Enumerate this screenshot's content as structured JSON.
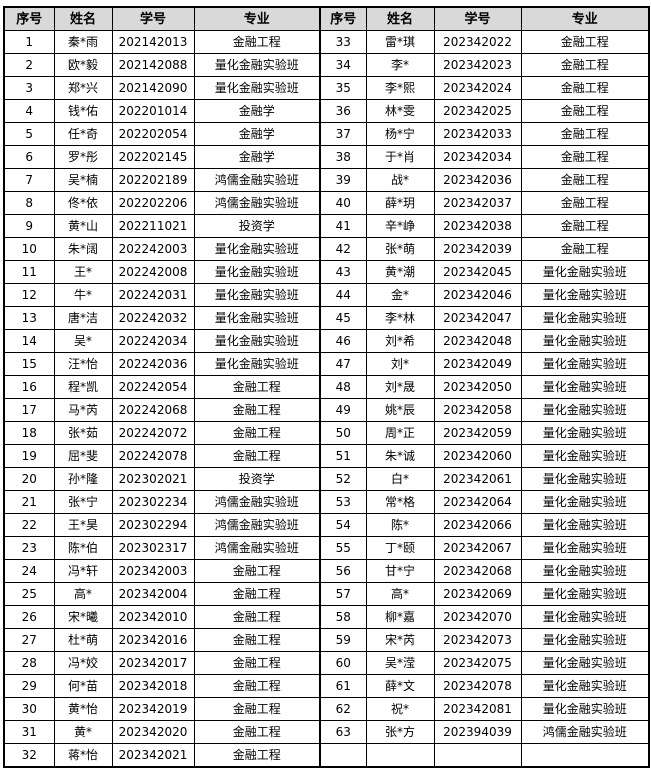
{
  "colors": {
    "header_bg": "#d9d9d9",
    "border": "#000000",
    "text": "#000000"
  },
  "table": {
    "headers": [
      "序号",
      "姓名",
      "学号",
      "专业",
      "序号",
      "姓名",
      "学号",
      "专业"
    ],
    "left_rows": [
      [
        "1",
        "秦*雨",
        "202142013",
        "金融工程"
      ],
      [
        "2",
        "欧*毅",
        "202142088",
        "量化金融实验班"
      ],
      [
        "3",
        "郑*兴",
        "202142090",
        "量化金融实验班"
      ],
      [
        "4",
        "钱*佑",
        "202201014",
        "金融学"
      ],
      [
        "5",
        "任*奇",
        "202202054",
        "金融学"
      ],
      [
        "6",
        "罗*彤",
        "202202145",
        "金融学"
      ],
      [
        "7",
        "吴*楠",
        "202202189",
        "鸿儒金融实验班"
      ],
      [
        "8",
        "佟*依",
        "202202206",
        "鸿儒金融实验班"
      ],
      [
        "9",
        "黄*山",
        "202211021",
        "投资学"
      ],
      [
        "10",
        "朱*阔",
        "202242003",
        "量化金融实验班"
      ],
      [
        "11",
        "王*",
        "202242008",
        "量化金融实验班"
      ],
      [
        "12",
        "牛*",
        "202242031",
        "量化金融实验班"
      ],
      [
        "13",
        "唐*洁",
        "202242032",
        "量化金融实验班"
      ],
      [
        "14",
        "吴*",
        "202242034",
        "量化金融实验班"
      ],
      [
        "15",
        "汪*怡",
        "202242036",
        "量化金融实验班"
      ],
      [
        "16",
        "程*凯",
        "202242054",
        "金融工程"
      ],
      [
        "17",
        "马*芮",
        "202242068",
        "金融工程"
      ],
      [
        "18",
        "张*茹",
        "202242072",
        "金融工程"
      ],
      [
        "19",
        "屈*斐",
        "202242078",
        "金融工程"
      ],
      [
        "20",
        "孙*隆",
        "202302021",
        "投资学"
      ],
      [
        "21",
        "张*宁",
        "202302234",
        "鸿儒金融实验班"
      ],
      [
        "22",
        "王*昊",
        "202302294",
        "鸿儒金融实验班"
      ],
      [
        "23",
        "陈*伯",
        "202302317",
        "鸿儒金融实验班"
      ],
      [
        "24",
        "冯*轩",
        "202342003",
        "金融工程"
      ],
      [
        "25",
        "高*",
        "202342004",
        "金融工程"
      ],
      [
        "26",
        "宋*曦",
        "202342010",
        "金融工程"
      ],
      [
        "27",
        "杜*萌",
        "202342016",
        "金融工程"
      ],
      [
        "28",
        "冯*姣",
        "202342017",
        "金融工程"
      ],
      [
        "29",
        "何*苗",
        "202342018",
        "金融工程"
      ],
      [
        "30",
        "黄*怡",
        "202342019",
        "金融工程"
      ],
      [
        "31",
        "黄*",
        "202342020",
        "金融工程"
      ],
      [
        "32",
        "蒋*怡",
        "202342021",
        "金融工程"
      ]
    ],
    "right_rows": [
      [
        "33",
        "雷*琪",
        "202342022",
        "金融工程"
      ],
      [
        "34",
        "李*",
        "202342023",
        "金融工程"
      ],
      [
        "35",
        "李*熙",
        "202342024",
        "金融工程"
      ],
      [
        "36",
        "林*雯",
        "202342025",
        "金融工程"
      ],
      [
        "37",
        "杨*宁",
        "202342033",
        "金融工程"
      ],
      [
        "38",
        "于*肖",
        "202342034",
        "金融工程"
      ],
      [
        "39",
        "战*",
        "202342036",
        "金融工程"
      ],
      [
        "40",
        "薛*玥",
        "202342037",
        "金融工程"
      ],
      [
        "41",
        "辛*峥",
        "202342038",
        "金融工程"
      ],
      [
        "42",
        "张*萌",
        "202342039",
        "金融工程"
      ],
      [
        "43",
        "黄*潮",
        "202342045",
        "量化金融实验班"
      ],
      [
        "44",
        "金*",
        "202342046",
        "量化金融实验班"
      ],
      [
        "45",
        "李*林",
        "202342047",
        "量化金融实验班"
      ],
      [
        "46",
        "刘*希",
        "202342048",
        "量化金融实验班"
      ],
      [
        "47",
        "刘*",
        "202342049",
        "量化金融实验班"
      ],
      [
        "48",
        "刘*晟",
        "202342050",
        "量化金融实验班"
      ],
      [
        "49",
        "姚*辰",
        "202342058",
        "量化金融实验班"
      ],
      [
        "50",
        "周*正",
        "202342059",
        "量化金融实验班"
      ],
      [
        "51",
        "朱*诚",
        "202342060",
        "量化金融实验班"
      ],
      [
        "52",
        "白*",
        "202342061",
        "量化金融实验班"
      ],
      [
        "53",
        "常*格",
        "202342064",
        "量化金融实验班"
      ],
      [
        "54",
        "陈*",
        "202342066",
        "量化金融实验班"
      ],
      [
        "55",
        "丁*颐",
        "202342067",
        "量化金融实验班"
      ],
      [
        "56",
        "甘*宁",
        "202342068",
        "量化金融实验班"
      ],
      [
        "57",
        "高*",
        "202342069",
        "量化金融实验班"
      ],
      [
        "58",
        "柳*嘉",
        "202342070",
        "量化金融实验班"
      ],
      [
        "59",
        "宋*芮",
        "202342073",
        "量化金融实验班"
      ],
      [
        "60",
        "吴*滢",
        "202342075",
        "量化金融实验班"
      ],
      [
        "61",
        "薛*文",
        "202342078",
        "量化金融实验班"
      ],
      [
        "62",
        "祝*",
        "202342081",
        "量化金融实验班"
      ],
      [
        "63",
        "张*方",
        "202394039",
        "鸿儒金融实验班"
      ],
      [
        "",
        "",
        "",
        ""
      ]
    ]
  }
}
